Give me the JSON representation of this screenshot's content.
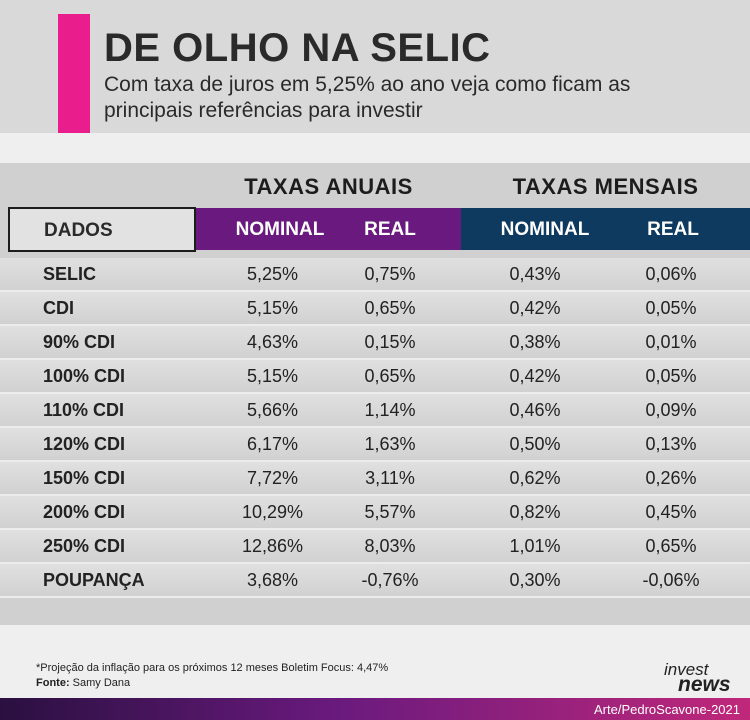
{
  "header": {
    "title": "DE OLHO NA SELIC",
    "subtitle": "Com taxa de juros em 5,25% ao ano veja como ficam as principais referências para investir"
  },
  "colors": {
    "accent": "#e91e8c",
    "annual": "#6a1a7e",
    "monthly": "#0d3a5e"
  },
  "chart_data": {
    "type": "table",
    "group_headers": [
      "TAXAS ANUAIS",
      "TAXAS MENSAIS"
    ],
    "columns": [
      "DADOS",
      "NOMINAL",
      "REAL",
      "NOMINAL",
      "REAL"
    ],
    "rows": [
      [
        "SELIC",
        "5,25%",
        "0,75%",
        "0,43%",
        "0,06%"
      ],
      [
        "CDI",
        "5,15%",
        "0,65%",
        "0,42%",
        "0,05%"
      ],
      [
        "90% CDI",
        "4,63%",
        "0,15%",
        "0,38%",
        "0,01%"
      ],
      [
        "100% CDI",
        "5,15%",
        "0,65%",
        "0,42%",
        "0,05%"
      ],
      [
        "110% CDI",
        "5,66%",
        "1,14%",
        "0,46%",
        "0,09%"
      ],
      [
        "120% CDI",
        "6,17%",
        "1,63%",
        "0,50%",
        "0,13%"
      ],
      [
        "150% CDI",
        "7,72%",
        "3,11%",
        "0,62%",
        "0,26%"
      ],
      [
        "200% CDI",
        "10,29%",
        "5,57%",
        "0,82%",
        "0,45%"
      ],
      [
        "250% CDI",
        "12,86%",
        "8,03%",
        "1,01%",
        "0,65%"
      ],
      [
        "POUPANÇA",
        "3,68%",
        "-0,76%",
        "0,30%",
        "-0,06%"
      ]
    ]
  },
  "footer": {
    "note": "*Projeção da inflação para os próximos 12 meses Boletim Focus: 4,47%",
    "source_label": "Fonte:",
    "source_value": "Samy Dana",
    "logo_line1": "invest",
    "logo_line2": "news",
    "credit": "Arte/PedroScavone-2021"
  }
}
